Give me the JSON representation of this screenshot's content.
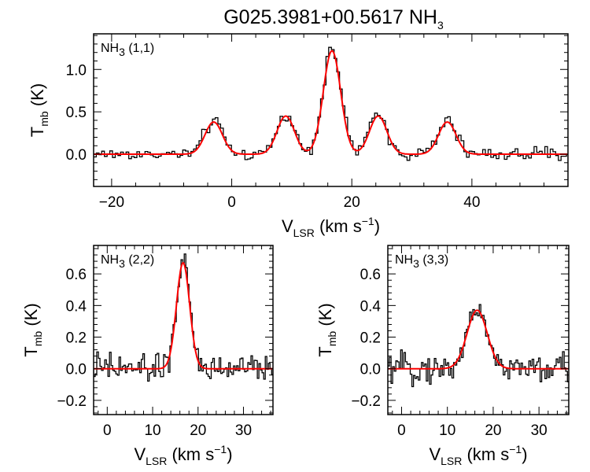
{
  "figure": {
    "title": "G025.3981+00.5617 NH",
    "title_sub": "3"
  },
  "chart_data": [
    {
      "type": "line",
      "panel_label": "NH",
      "panel_label_sub": "3",
      "panel_label_rest": " (1,1)",
      "xlabel": "V",
      "xlabel_sub": "LSR",
      "xlabel_rest": " (km s",
      "xlabel_sup": "−1",
      "xlabel_end": ")",
      "ylabel": "T",
      "ylabel_sub": "mb",
      "ylabel_rest": " (K)",
      "xlim": [
        -23,
        56
      ],
      "ylim": [
        -0.38,
        1.42
      ],
      "xticks": [
        -20,
        0,
        20,
        40
      ],
      "xtick_labels": [
        "−20",
        "0",
        "20",
        "40"
      ],
      "yticks": [
        0.0,
        0.5,
        1.0
      ],
      "ytick_labels": [
        "0.0",
        "0.5",
        "1.0"
      ],
      "grid": false,
      "series": [
        {
          "style": "histogram",
          "color": "#000000",
          "gaussians": [
            [
              -3.0,
              0.39,
              1.5
            ],
            [
              9.0,
              0.46,
              1.5
            ],
            [
              16.7,
              1.25,
              1.5
            ],
            [
              24.4,
              0.46,
              1.5
            ],
            [
              35.9,
              0.39,
              1.5
            ]
          ],
          "noise_rms": 0.038,
          "channel_width": 0.45
        },
        {
          "style": "line",
          "color": "#ff0000",
          "gaussians": [
            [
              -3.0,
              0.38,
              1.45
            ],
            [
              9.0,
              0.45,
              1.45
            ],
            [
              16.7,
              1.22,
              1.45
            ],
            [
              24.4,
              0.45,
              1.45
            ],
            [
              35.9,
              0.38,
              1.45
            ]
          ]
        }
      ]
    },
    {
      "type": "line",
      "panel_label": "NH",
      "panel_label_sub": "3",
      "panel_label_rest": " (2,2)",
      "xlabel": "V",
      "xlabel_sub": "LSR",
      "xlabel_rest": " (km s",
      "xlabel_sup": "−1",
      "xlabel_end": ")",
      "ylabel": "T",
      "ylabel_sub": "mb",
      "ylabel_rest": " (K)",
      "xlim": [
        -3,
        36.5
      ],
      "ylim": [
        -0.29,
        0.78
      ],
      "xticks": [
        0,
        10,
        20,
        30
      ],
      "xtick_labels": [
        "0",
        "10",
        "20",
        "30"
      ],
      "yticks": [
        -0.2,
        0.0,
        0.2,
        0.4,
        0.6
      ],
      "ytick_labels": [
        "−0.2",
        "0.0",
        "0.2",
        "0.4",
        "0.6"
      ],
      "grid": false,
      "series": [
        {
          "style": "histogram",
          "color": "#000000",
          "gaussians": [
            [
              16.7,
              0.69,
              1.45
            ]
          ],
          "noise_rms": 0.045,
          "channel_width": 0.35
        },
        {
          "style": "line",
          "color": "#ff0000",
          "gaussians": [
            [
              16.7,
              0.67,
              1.45
            ]
          ]
        }
      ]
    },
    {
      "type": "line",
      "panel_label": "NH",
      "panel_label_sub": "3",
      "panel_label_rest": " (3,3)",
      "xlabel": "V",
      "xlabel_sub": "LSR",
      "xlabel_rest": " (km s",
      "xlabel_sup": "−1",
      "xlabel_end": ")",
      "ylabel": "T",
      "ylabel_sub": "mb",
      "ylabel_rest": " (K)",
      "xlim": [
        -3,
        36.5
      ],
      "ylim": [
        -0.29,
        0.78
      ],
      "xticks": [
        0,
        10,
        20,
        30
      ],
      "xtick_labels": [
        "0",
        "10",
        "20",
        "30"
      ],
      "yticks": [
        -0.2,
        0.0,
        0.2,
        0.4,
        0.6
      ],
      "ytick_labels": [
        "−0.2",
        "0.0",
        "0.2",
        "0.4",
        "0.6"
      ],
      "grid": false,
      "series": [
        {
          "style": "histogram",
          "color": "#000000",
          "gaussians": [
            [
              16.5,
              0.38,
              2.2
            ]
          ],
          "noise_rms": 0.045,
          "channel_width": 0.35
        },
        {
          "style": "line",
          "color": "#ff0000",
          "gaussians": [
            [
              16.5,
              0.37,
              2.2
            ]
          ]
        }
      ]
    }
  ]
}
